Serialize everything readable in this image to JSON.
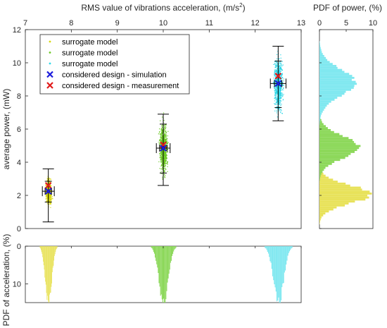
{
  "chart_data": [
    {
      "type": "scatter",
      "panel": "main",
      "xlabel": "RMS value of vibrations acceleration, (m/s",
      "xlabel_sup": "2",
      "xlabel_end": ")",
      "ylabel": "average power, (mW)",
      "xlim": [
        7,
        13
      ],
      "ylim": [
        0,
        12
      ],
      "x_axis_position": "top",
      "x_ticks": [
        "7",
        "8",
        "9",
        "10",
        "11",
        "12",
        "13"
      ],
      "y_ticks": [
        "0",
        "2",
        "4",
        "6",
        "8",
        "10",
        "12"
      ],
      "legend_position": "top-left",
      "legend": [
        {
          "label": "surrogate model",
          "marker": "dot",
          "color": "#d8d810"
        },
        {
          "label": "surrogate model",
          "marker": "dot",
          "color": "#6cc824"
        },
        {
          "label": "surrogate model",
          "marker": "dot",
          "color": "#30d8e8"
        },
        {
          "label": "considered design - simulation",
          "marker": "x",
          "color": "#1a1adc"
        },
        {
          "label": "considered design - measurement",
          "marker": "x",
          "color": "#e01a1a"
        }
      ],
      "series": [
        {
          "name": "surrogate model",
          "color": "#d8d810",
          "x_mean": 7.5,
          "x_spread": 0.07,
          "y_mean": 2.25,
          "y_spread": 0.95
        },
        {
          "name": "surrogate model",
          "color": "#6cc824",
          "x_mean": 10.0,
          "x_spread": 0.1,
          "y_mean": 4.85,
          "y_spread": 2.1
        },
        {
          "name": "surrogate model",
          "color": "#30d8e8",
          "x_mean": 12.5,
          "x_spread": 0.11,
          "y_mean": 8.75,
          "y_spread": 2.3
        }
      ],
      "error_bars": [
        {
          "x": 7.5,
          "y": 2.25,
          "y_low": 0.4,
          "y_high": 3.6,
          "y_sd_low": 1.6,
          "y_sd_high": 2.85,
          "x_low": 7.37,
          "x_high": 7.63,
          "x_sd_low": 7.43,
          "x_sd_high": 7.57
        },
        {
          "x": 10.0,
          "y": 4.85,
          "y_low": 2.6,
          "y_high": 6.9,
          "y_sd_low": 3.35,
          "y_sd_high": 6.3,
          "x_low": 9.85,
          "x_high": 10.15,
          "x_sd_low": 9.92,
          "x_sd_high": 10.08
        },
        {
          "x": 12.5,
          "y": 8.75,
          "y_low": 6.5,
          "y_high": 11.0,
          "y_sd_low": 7.3,
          "y_sd_high": 10.1,
          "x_low": 12.33,
          "x_high": 12.67,
          "x_sd_low": 12.42,
          "x_sd_high": 12.58
        }
      ],
      "design_simulation": [
        {
          "x": 7.5,
          "y": 2.25
        },
        {
          "x": 10.0,
          "y": 4.85
        },
        {
          "x": 12.5,
          "y": 8.75
        }
      ],
      "design_measurement": [
        {
          "x": 7.5,
          "y": 2.6
        },
        {
          "x": 10.0,
          "y": 5.05
        },
        {
          "x": 12.5,
          "y": 9.2
        }
      ]
    },
    {
      "type": "area",
      "panel": "right",
      "orientation": "horizontal-histogram",
      "title": "PDF of power, (%)",
      "xlim": [
        0,
        10
      ],
      "ylim": [
        0,
        12
      ],
      "x_ticks": [
        "0",
        "5",
        "10"
      ],
      "series": [
        {
          "color": "#e8e25a",
          "mode": 2.0,
          "peak": 9.6,
          "spread": 0.55
        },
        {
          "color": "#8cd85a",
          "mode": 4.85,
          "peak": 7.6,
          "spread": 0.65
        },
        {
          "color": "#80e8f0",
          "mode": 8.75,
          "peak": 6.6,
          "spread": 0.8
        }
      ]
    },
    {
      "type": "area",
      "panel": "bottom",
      "orientation": "vertical-histogram",
      "ylabel": "PDF of acceleration, (%)",
      "xlim": [
        7,
        13
      ],
      "ylim": [
        0,
        15
      ],
      "y_ticks": [
        "0",
        "10"
      ],
      "y_reversed": true,
      "series": [
        {
          "color": "#e8e25a",
          "mode": 7.5,
          "peak": 15,
          "spread": 0.07
        },
        {
          "color": "#8cd85a",
          "mode": 10.0,
          "peak": 15,
          "spread": 0.1
        },
        {
          "color": "#80e8f0",
          "mode": 12.5,
          "peak": 15,
          "spread": 0.11
        }
      ]
    }
  ]
}
